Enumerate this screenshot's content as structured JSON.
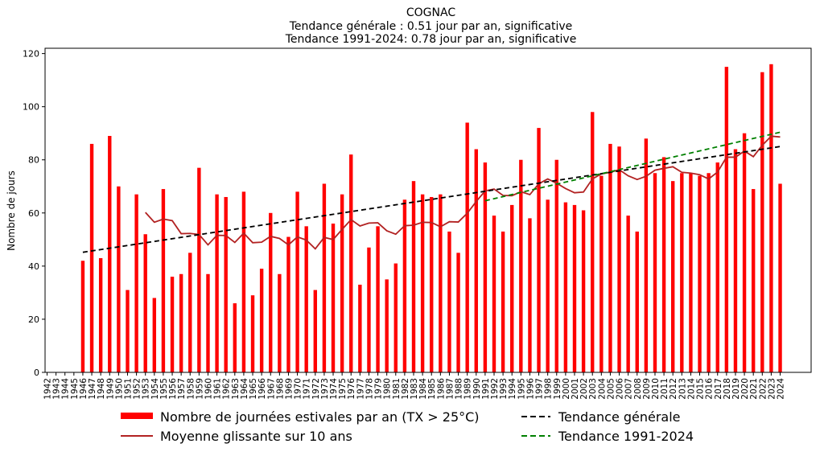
{
  "chart_data": {
    "type": "bar",
    "title": "COGNAC",
    "subtitle_lines": [
      "Tendance générale : 0.51 jour par an, significative",
      "Tendance 1991-2024: 0.78 jour par an, significative"
    ],
    "ylabel": "Nombre de jours",
    "xlabel": "",
    "ylim": [
      0,
      122
    ],
    "yticks": [
      0,
      20,
      40,
      60,
      80,
      100,
      120
    ],
    "grid": false,
    "legend_position": "bottom",
    "categories": [
      "1942",
      "1943",
      "1944",
      "1945",
      "1946",
      "1947",
      "1948",
      "1949",
      "1950",
      "1951",
      "1952",
      "1953",
      "1954",
      "1955",
      "1956",
      "1957",
      "1958",
      "1959",
      "1960",
      "1961",
      "1962",
      "1963",
      "1964",
      "1965",
      "1966",
      "1967",
      "1968",
      "1969",
      "1970",
      "1971",
      "1972",
      "1973",
      "1974",
      "1975",
      "1976",
      "1977",
      "1978",
      "1979",
      "1980",
      "1981",
      "1982",
      "1983",
      "1984",
      "1985",
      "1986",
      "1987",
      "1988",
      "1989",
      "1990",
      "1991",
      "1992",
      "1993",
      "1994",
      "1995",
      "1996",
      "1997",
      "1998",
      "1999",
      "2000",
      "2001",
      "2002",
      "2003",
      "2004",
      "2005",
      "2006",
      "2007",
      "2008",
      "2009",
      "2010",
      "2011",
      "2012",
      "2013",
      "2014",
      "2015",
      "2016",
      "2017",
      "2018",
      "2019",
      "2020",
      "2021",
      "2022",
      "2023",
      "2024"
    ],
    "series": [
      {
        "name": "Nombre de journées estivales par an (TX > 25°C)",
        "kind": "bar",
        "color": "#ff0000",
        "values": [
          null,
          null,
          null,
          null,
          42,
          86,
          43,
          89,
          70,
          31,
          67,
          52,
          28,
          69,
          36,
          37,
          45,
          77,
          37,
          67,
          66,
          26,
          68,
          29,
          39,
          60,
          37,
          51,
          68,
          55,
          31,
          71,
          56,
          67,
          82,
          33,
          47,
          55,
          35,
          41,
          65,
          72,
          67,
          66,
          67,
          53,
          45,
          94,
          84,
          79,
          59,
          53,
          63,
          80,
          58,
          92,
          65,
          80,
          64,
          63,
          61,
          98,
          74,
          86,
          85,
          59,
          53,
          88,
          75,
          81,
          72,
          75,
          75,
          74,
          75,
          79,
          115,
          84,
          90,
          69,
          113,
          116,
          71
        ]
      },
      {
        "name": "Moyenne glissante sur 10 ans",
        "kind": "line",
        "color": "#b22222",
        "values": [
          null,
          null,
          null,
          null,
          null,
          null,
          null,
          null,
          null,
          null,
          null,
          60.2,
          56.5,
          57.7,
          57.1,
          52.2,
          52.3,
          51.9,
          48.0,
          51.6,
          51.5,
          48.9,
          52.4,
          48.8,
          49.0,
          51.2,
          50.4,
          48.0,
          51.0,
          49.8,
          46.5,
          50.8,
          50.0,
          53.8,
          57.5,
          55.1,
          56.2,
          56.3,
          53.3,
          52.0,
          55.2,
          55.4,
          56.5,
          56.4,
          54.8,
          56.7,
          56.6,
          59.9,
          64.3,
          68.3,
          69.0,
          66.6,
          66.5,
          68.0,
          66.9,
          71.0,
          72.8,
          71.2,
          69.2,
          67.6,
          67.9,
          72.8,
          74.7,
          75.3,
          76.3,
          74.0,
          72.6,
          73.8,
          76.1,
          76.8,
          77.4,
          75.3,
          75.0,
          74.4,
          72.8,
          75.4,
          81.0,
          81.0,
          83.3,
          81.2,
          85.5,
          88.9,
          88.6
        ]
      },
      {
        "name": "Tendance générale",
        "kind": "dashed",
        "color": "#000000",
        "x": [
          "1946",
          "2024"
        ],
        "values": [
          45.2,
          85.0
        ]
      },
      {
        "name": "Tendance 1991-2024",
        "kind": "dashed",
        "color": "#008000",
        "x": [
          "1991",
          "2024"
        ],
        "values": [
          64.6,
          90.4
        ]
      }
    ]
  }
}
